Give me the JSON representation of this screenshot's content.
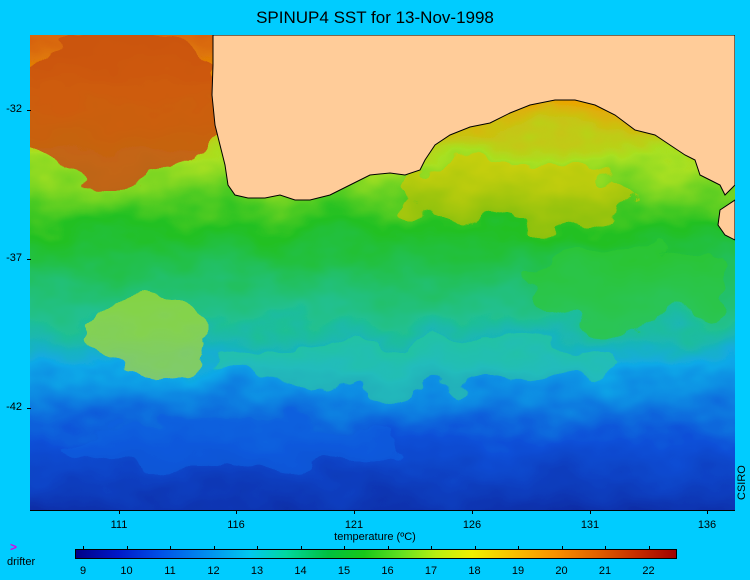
{
  "title": "SPINUP4 SST for 13-Nov-1998",
  "credit": "CSIRO",
  "colorbar": {
    "title": "temperature (ºC)",
    "ticks": [
      "9",
      "10",
      "11",
      "12",
      "13",
      "14",
      "15",
      "16",
      "17",
      "18",
      "19",
      "20",
      "21",
      "22"
    ]
  },
  "y_axis": {
    "ticks": [
      "-32",
      "-37",
      "-42"
    ]
  },
  "x_axis": {
    "ticks": [
      "111",
      "116",
      "121",
      "126",
      "131",
      "136"
    ]
  },
  "legend": {
    "symbol": ">",
    "label": "drifter"
  },
  "colors": {
    "background": "#00CCFF",
    "land": "#FFCC99",
    "cold": "#000088",
    "warm": "#A00000"
  }
}
